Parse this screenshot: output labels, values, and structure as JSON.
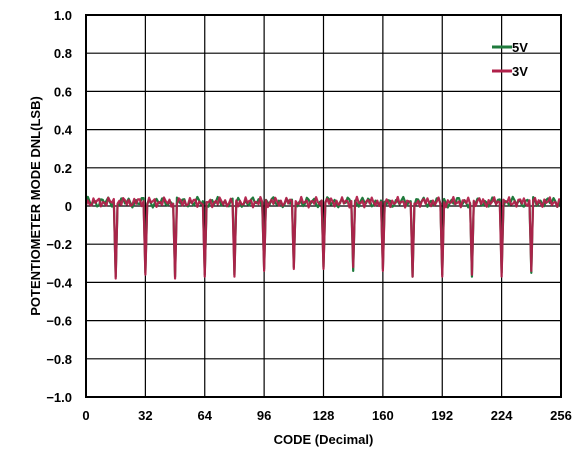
{
  "chart_data": {
    "type": "line",
    "title": "",
    "xlabel": "CODE (Decimal)",
    "ylabel": "POTENTIOMETER MODE DNL(LSB)",
    "xlim": [
      0,
      256
    ],
    "ylim": [
      -1.0,
      1.0
    ],
    "x_ticks": [
      "0",
      "32",
      "64",
      "96",
      "128",
      "160",
      "192",
      "224",
      "256"
    ],
    "y_ticks": [
      "1.0",
      "0.8",
      "0.6",
      "0.4",
      "0.2",
      "0",
      "−0.2",
      "−0.4",
      "−0.6",
      "−0.8",
      "−1.0"
    ],
    "grid": true,
    "legend_position": "top-right",
    "baseline_dnl": 0.02,
    "dip_codes": [
      16,
      32,
      48,
      64,
      80,
      96,
      112,
      128,
      144,
      160,
      176,
      192,
      208,
      224,
      240
    ],
    "series": [
      {
        "name": "5V",
        "color": "#1f7a3c",
        "dip_values": [
          -0.37,
          -0.35,
          -0.37,
          -0.36,
          -0.36,
          -0.33,
          -0.32,
          -0.32,
          -0.34,
          -0.33,
          -0.37,
          -0.36,
          -0.37,
          -0.35,
          -0.35
        ]
      },
      {
        "name": "3V",
        "color": "#b0204a",
        "dip_values": [
          -0.38,
          -0.36,
          -0.38,
          -0.37,
          -0.37,
          -0.34,
          -0.33,
          -0.33,
          -0.32,
          -0.34,
          -0.37,
          -0.37,
          -0.36,
          -0.37,
          -0.34
        ]
      }
    ]
  }
}
